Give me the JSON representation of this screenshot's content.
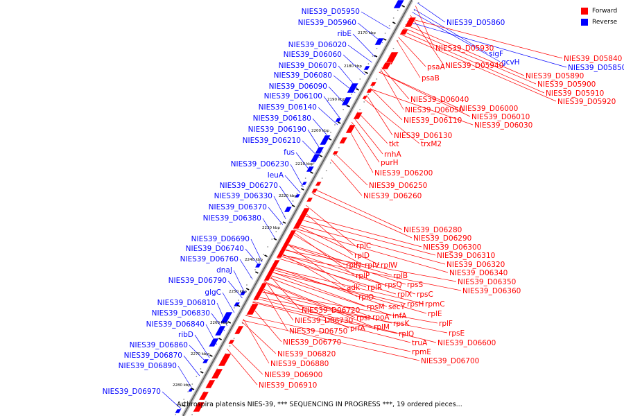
{
  "legend": {
    "forward_label": "Forward",
    "reverse_label": "Reverse",
    "forward_color": "#ff0000",
    "reverse_color": "#0000ff"
  },
  "caption": "Arthrospira platensis NIES-39, *** SEQUENCING IN PROGRESS ***, 19 ordered pieces...",
  "ticks": [
    "2170 kbp",
    "2180 kbp",
    "2190 kbp",
    "2200 kbp",
    "2210 kbp",
    "2220 kbp",
    "2230 kbp",
    "2240 kbp",
    "2250 kbp",
    "2260 kbp",
    "2270 kbp",
    "2280 kbp"
  ],
  "reverse_labels": [
    "NIES39_D05950",
    "NIES39_D05960",
    "ribE",
    "NIES39_D06020",
    "NIES39_D06060",
    "NIES39_D06070",
    "NIES39_D06080",
    "NIES39_D06090",
    "NIES39_D06100",
    "NIES39_D06140",
    "NIES39_D06180",
    "NIES39_D06190",
    "NIES39_D06210",
    "fus",
    "NIES39_D06230",
    "leuA",
    "NIES39_D06270",
    "NIES39_D06330",
    "NIES39_D06370",
    "NIES39_D06380",
    "NIES39_D06690",
    "NIES39_D06740",
    "NIES39_D06760",
    "dnaJ",
    "NIES39_D06790",
    "glgC",
    "NIES39_D06810",
    "NIES39_D06830",
    "NIES39_D06840",
    "ribD",
    "NIES39_D06860",
    "NIES39_D06870",
    "NIES39_D06890",
    "NIES39_D06970"
  ],
  "top_right_labels": [
    {
      "text": "NIES39_D05860",
      "strand": "reverse"
    },
    {
      "text": "NIES39_D05930",
      "strand": "forward"
    },
    {
      "text": "sigF",
      "strand": "reverse"
    },
    {
      "text": "gcvH",
      "strand": "reverse"
    },
    {
      "text": "NIES39_D05940",
      "strand": "forward"
    },
    {
      "text": "NIES39_D05840",
      "strand": "forward"
    },
    {
      "text": "NIES39_D05850",
      "strand": "reverse"
    },
    {
      "text": "NIES39_D05890",
      "strand": "forward"
    },
    {
      "text": "NIES39_D05900",
      "strand": "forward"
    },
    {
      "text": "NIES39_D05910",
      "strand": "forward"
    },
    {
      "text": "NIES39_D05920",
      "strand": "forward"
    },
    {
      "text": "psaA",
      "strand": "forward"
    },
    {
      "text": "psaB",
      "strand": "forward"
    }
  ],
  "forward_labels": [
    "NIES39_D06040",
    "NIES39_D06000",
    "NIES39_D06050",
    "NIES39_D06010",
    "NIES39_D06110",
    "NIES39_D06030",
    "NIES39_D06130",
    "trxM2",
    "tkt",
    "rnhA",
    "purH",
    "NIES39_D06200",
    "NIES39_D06250",
    "NIES39_D06260",
    "NIES39_D06280",
    "NIES39_D06290",
    "NIES39_D06300",
    "NIES39_D06310",
    "NIES39_D06320",
    "NIES39_D06340",
    "NIES39_D06350",
    "NIES39_D06360",
    "rplC",
    "rplD",
    "rplN",
    "rplV",
    "rplW",
    "rplP",
    "rplB",
    "rpsQ",
    "rpsS",
    "adk",
    "rplR",
    "rplX",
    "rpsC",
    "rplO",
    "rpsH",
    "rpmC",
    "secY",
    "rplE",
    "rpsM",
    "NIES39_D06720",
    "rpoA",
    "infA",
    "rplF",
    "rpsI",
    "NIES39_D06730",
    "rplM",
    "rpsK",
    "rpsE",
    "prfA",
    "NIES39_D06750",
    "rplQ",
    "NIES39_D06770",
    "truA",
    "NIES39_D06600",
    "NIES39_D06820",
    "rpmE",
    "NIES39_D06700",
    "NIES39_D06880",
    "NIES39_D06900",
    "NIES39_D06910"
  ]
}
